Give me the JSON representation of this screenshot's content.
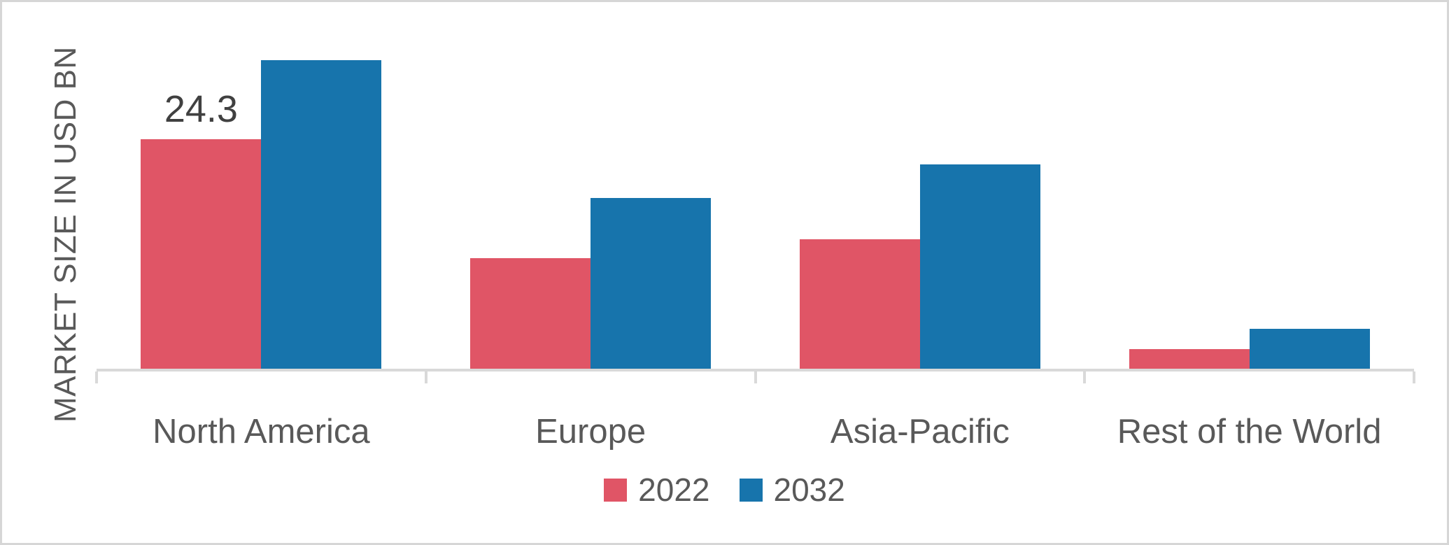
{
  "chart_data": {
    "type": "bar",
    "title": "",
    "xlabel": "",
    "ylabel": "MARKET SIZE IN USD BN",
    "categories": [
      "North America",
      "Europe",
      "Asia-Pacific",
      "Rest of the World"
    ],
    "series": [
      {
        "name": "2022",
        "color": "#e05566",
        "values": [
          24.3,
          11.7,
          13.7,
          2.1
        ]
      },
      {
        "name": "2032",
        "color": "#1774ac",
        "values": [
          32.7,
          18.1,
          21.6,
          4.2
        ]
      }
    ],
    "data_labels": [
      {
        "series": "2022",
        "category": "North America",
        "text": "24.3"
      }
    ],
    "ylim": [
      0,
      34
    ],
    "grid": false,
    "legend_position": "bottom",
    "axis_ticks": [
      "left-end",
      "between-1",
      "between-2",
      "between-3",
      "right-end"
    ]
  },
  "colors": {
    "axis_line": "#d9d9d9",
    "category_text": "#595959",
    "y_title_text": "#595959",
    "data_label_text": "#404040",
    "frame_border": "#d6d6d6"
  }
}
